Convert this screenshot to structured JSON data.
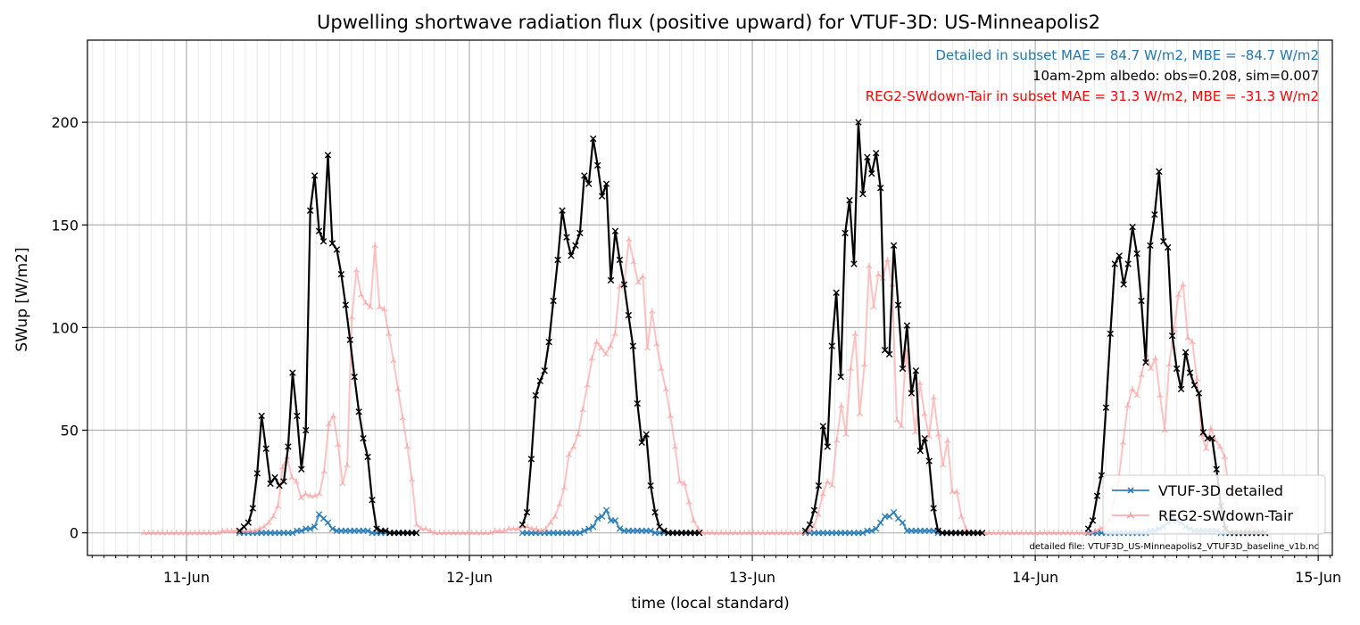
{
  "chart_data": {
    "type": "line",
    "title": "Upwelling shortwave radiation flux (positive upward) for VTUF-3D: US-Minneapolis2",
    "xlabel": "time (local standard)",
    "ylabel": "SWup [W/m2]",
    "xlim": [
      -0.35,
      4.05
    ],
    "ylim": [
      -11,
      240
    ],
    "x_ticks": [
      {
        "x": 0,
        "label": "11-Jun"
      },
      {
        "x": 1,
        "label": "12-Jun"
      },
      {
        "x": 2,
        "label": "13-Jun"
      },
      {
        "x": 3,
        "label": "14-Jun"
      },
      {
        "x": 4,
        "label": "15-Jun"
      }
    ],
    "y_ticks": [
      0,
      50,
      100,
      150,
      200
    ],
    "grid": true,
    "legend_position": "lower-right",
    "annotations": {
      "detailed_stats": "Detailed in subset MAE = 84.7 W/m2, MBE = -84.7 W/m2",
      "albedo": "10am-2pm albedo: obs=0.208, sim=0.007",
      "reg2_stats": "REG2-SWdown-Tair in subset MAE = 31.3 W/m2, MBE = -31.3 W/m2",
      "file_note": "detailed file: VTUF3D_US-Minneapolis2_VTUF3D_baseline_v1b.nc"
    },
    "colors": {
      "detailed": "#1f77b4",
      "reg2": "#ff9999",
      "obs": "#000000",
      "annotation_detailed": "#1f77b4",
      "annotation_albedo": "#000000",
      "annotation_reg2": "#ff0000"
    },
    "series": [
      {
        "name": "VTUF-3D detailed",
        "key": "detailed",
        "marker": "x",
        "days": [
          {
            "day": 0,
            "t0": 0.1875,
            "t1": 0.8125,
            "values": [
              0,
              0,
              0,
              0,
              0,
              0,
              0,
              0,
              0,
              0,
              0,
              0,
              0,
              1,
              1,
              2,
              2,
              3,
              9,
              7,
              5,
              2,
              1,
              1,
              1,
              1,
              1,
              1,
              1,
              1,
              0,
              0,
              0,
              0,
              0,
              0,
              0,
              0,
              0,
              0,
              0
            ]
          },
          {
            "day": 1,
            "t0": 0.1875,
            "t1": 0.8125,
            "values": [
              0,
              0,
              0,
              0,
              0,
              0,
              0,
              0,
              0,
              0,
              0,
              0,
              0,
              0,
              1,
              2,
              3,
              7,
              8,
              11,
              6,
              6,
              2,
              1,
              1,
              1,
              1,
              1,
              1,
              1,
              0,
              0,
              0,
              0,
              0,
              0,
              0,
              0,
              0,
              0,
              0
            ]
          },
          {
            "day": 2,
            "t0": 0.1875,
            "t1": 0.8125,
            "values": [
              0,
              0,
              0,
              0,
              0,
              0,
              0,
              0,
              0,
              0,
              0,
              0,
              0,
              0,
              1,
              1,
              2,
              5,
              8,
              8,
              10,
              7,
              5,
              1,
              1,
              1,
              1,
              1,
              1,
              1,
              0,
              0,
              0,
              0,
              0,
              0,
              0,
              0,
              0,
              0,
              0
            ]
          },
          {
            "day": 3,
            "t0": 0.1875,
            "t1": 0.8125,
            "values": [
              0,
              0,
              0,
              0,
              0,
              0,
              0,
              0,
              0,
              0,
              0,
              0,
              0,
              0,
              1,
              1,
              2,
              3,
              5,
              6,
              6,
              5,
              3,
              2,
              1,
              1,
              1,
              1,
              1,
              1,
              0,
              0,
              0,
              0,
              0,
              0,
              0,
              0,
              0,
              0,
              0
            ]
          }
        ]
      },
      {
        "name": "REG2-SWdown-Tair",
        "key": "reg2",
        "marker": "tri",
        "t0": -0.15,
        "t1": 3.8,
        "values": [
          0,
          0,
          0,
          0,
          0,
          0,
          0,
          0,
          0,
          0,
          0,
          0,
          0,
          0,
          0,
          0,
          0,
          1,
          1,
          1,
          1,
          1,
          1,
          1,
          1,
          2,
          3,
          5,
          8,
          13,
          32,
          37,
          27,
          25,
          17,
          19,
          18,
          18,
          19,
          30,
          53,
          57,
          43,
          24,
          33,
          105,
          128,
          116,
          112,
          110,
          140,
          110,
          109,
          97,
          84,
          70,
          56,
          42,
          26,
          4,
          2,
          2,
          1,
          0,
          0,
          0,
          0,
          0,
          0,
          0,
          0,
          0,
          0,
          0,
          0,
          0,
          1,
          1,
          1,
          2,
          2,
          2,
          3,
          3,
          2,
          2,
          1,
          2,
          5,
          8,
          14,
          22,
          38,
          42,
          48,
          60,
          72,
          85,
          93,
          90,
          87,
          91,
          97,
          120,
          122,
          143,
          132,
          122,
          125,
          90,
          108,
          92,
          80,
          70,
          57,
          42,
          25,
          24,
          15,
          6,
          2,
          0,
          0,
          0,
          0,
          0,
          0,
          0,
          0,
          0,
          0,
          0,
          0,
          0,
          0,
          0,
          0,
          0,
          0,
          0,
          0,
          0,
          0,
          0,
          1,
          3,
          9,
          19,
          25,
          23,
          45,
          62,
          48,
          80,
          97,
          58,
          82,
          130,
          110,
          126,
          124,
          133,
          121,
          55,
          52,
          89,
          70,
          49,
          73,
          58,
          47,
          66,
          48,
          33,
          45,
          20,
          20,
          8,
          2,
          0,
          0,
          0,
          0,
          0,
          0,
          0,
          0,
          0,
          0,
          0,
          0,
          0,
          0,
          0,
          0,
          0,
          0,
          0,
          0,
          0,
          0,
          0,
          0,
          0,
          0,
          0,
          1,
          2,
          3,
          6,
          15,
          25,
          44,
          62,
          70,
          67,
          77,
          87,
          80,
          85,
          67,
          50,
          82,
          99,
          116,
          121,
          95,
          93,
          75,
          48,
          41,
          51,
          45,
          42,
          37,
          20,
          19,
          12,
          6,
          5,
          3,
          1,
          0
        ]
      },
      {
        "name": "obs",
        "key": "obs",
        "marker": "x",
        "days": [
          {
            "day": 0,
            "t0": 0.1875,
            "t1": 0.8125,
            "values": [
              1,
              3,
              5,
              12,
              29,
              57,
              41,
              24,
              27,
              23,
              25,
              42,
              78,
              57,
              31,
              50,
              157,
              174,
              147,
              142,
              184,
              141,
              138,
              126,
              111,
              94,
              76,
              59,
              46,
              37,
              16,
              2,
              1,
              1,
              0,
              0,
              0,
              0,
              0,
              0,
              0
            ]
          },
          {
            "day": 1,
            "t0": 0.1875,
            "t1": 0.8125,
            "values": [
              4,
              10,
              36,
              67,
              74,
              79,
              93,
              113,
              133,
              157,
              144,
              135,
              140,
              146,
              174,
              170,
              192,
              179,
              164,
              170,
              123,
              147,
              133,
              121,
              106,
              91,
              63,
              44,
              48,
              23,
              10,
              3,
              1,
              0,
              0,
              0,
              0,
              0,
              0,
              0,
              0
            ]
          },
          {
            "day": 2,
            "t0": 0.1875,
            "t1": 0.8125,
            "values": [
              1,
              4,
              11,
              23,
              52,
              42,
              91,
              117,
              76,
              146,
              162,
              131,
              200,
              165,
              183,
              175,
              185,
              168,
              89,
              87,
              140,
              111,
              80,
              101,
              68,
              79,
              40,
              46,
              35,
              12,
              1,
              0,
              0,
              0,
              0,
              0,
              0,
              0,
              0,
              0,
              0
            ]
          },
          {
            "day": 3,
            "t0": 0.1875,
            "t1": 0.8125,
            "values": [
              2,
              6,
              18,
              28,
              61,
              97,
              131,
              135,
              121,
              131,
              149,
              136,
              113,
              83,
              140,
              155,
              176,
              142,
              139,
              96,
              80,
              70,
              88,
              78,
              72,
              68,
              49,
              46,
              46,
              31,
              13,
              2,
              0,
              0,
              0,
              0,
              0,
              0,
              0,
              0,
              0
            ]
          }
        ]
      }
    ]
  }
}
